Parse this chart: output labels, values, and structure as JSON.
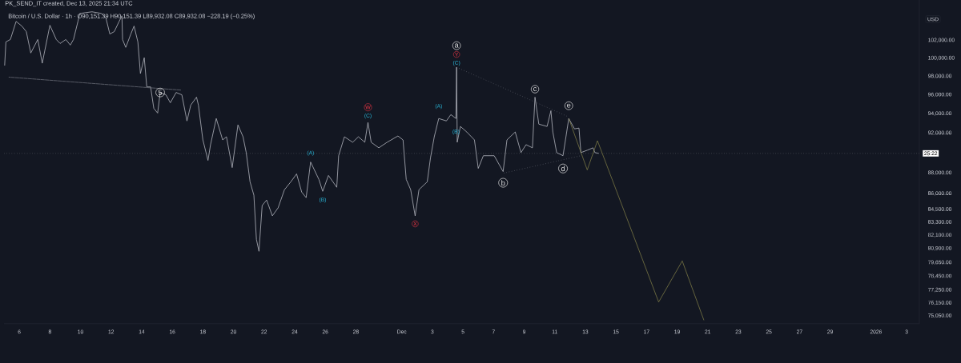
{
  "chart_data": {
    "type": "line",
    "title": "Bitcoin / U.S. Dollar · 1h · O90,151.39 H90,151.39 L89,932.08 C89,932.08 −228.19 (−0.25%)",
    "ylabel": "USD",
    "log": "y",
    "marker": "none",
    "xlim": [
      "2025-11-05T00:00",
      "2026-01-03T20:00"
    ],
    "ylim": [
      74400,
      106700
    ],
    "xticks": [
      {
        "value": "2025-11-06",
        "label": "6"
      },
      {
        "value": "2025-11-08",
        "label": "8"
      },
      {
        "value": "2025-11-10",
        "label": "10"
      },
      {
        "value": "2025-11-12",
        "label": "12"
      },
      {
        "value": "2025-11-14",
        "label": "14"
      },
      {
        "value": "2025-11-16",
        "label": "16"
      },
      {
        "value": "2025-11-18",
        "label": "18"
      },
      {
        "value": "2025-11-20",
        "label": "20"
      },
      {
        "value": "2025-11-22",
        "label": "22"
      },
      {
        "value": "2025-11-24",
        "label": "24"
      },
      {
        "value": "2025-11-26",
        "label": "26"
      },
      {
        "value": "2025-11-28",
        "label": "28"
      },
      {
        "value": "2025-12-01",
        "label": "Dec"
      },
      {
        "value": "2025-12-03",
        "label": "3"
      },
      {
        "value": "2025-12-05",
        "label": "5"
      },
      {
        "value": "2025-12-07",
        "label": "7"
      },
      {
        "value": "2025-12-09",
        "label": "9"
      },
      {
        "value": "2025-12-11",
        "label": "11"
      },
      {
        "value": "2025-12-13",
        "label": "13"
      },
      {
        "value": "2025-12-15",
        "label": "15"
      },
      {
        "value": "2025-12-17",
        "label": "17"
      },
      {
        "value": "2025-12-19",
        "label": "19"
      },
      {
        "value": "2025-12-21",
        "label": "21"
      },
      {
        "value": "2025-12-23",
        "label": "23"
      },
      {
        "value": "2025-12-25",
        "label": "25"
      },
      {
        "value": "2025-12-27",
        "label": "27"
      },
      {
        "value": "2025-12-29",
        "label": "29"
      },
      {
        "value": "2026-01-01",
        "label": "2026"
      },
      {
        "value": "2026-01-03",
        "label": "3"
      }
    ],
    "yticks": [
      {
        "value": 75050,
        "label": "75,050.00"
      },
      {
        "value": 76150,
        "label": "76,150.00"
      },
      {
        "value": 77250,
        "label": "77,250.00"
      },
      {
        "value": 78450,
        "label": "78,450.00"
      },
      {
        "value": 79650,
        "label": "79,650.00"
      },
      {
        "value": 80900,
        "label": "80,900.00"
      },
      {
        "value": 82100,
        "label": "82,100.00"
      },
      {
        "value": 83300,
        "label": "83,300.00"
      },
      {
        "value": 84500,
        "label": "84,500.00"
      },
      {
        "value": 86000,
        "label": "86,000.00"
      },
      {
        "value": 88000,
        "label": "88,000.00"
      },
      {
        "value": 90000,
        "label": null
      },
      {
        "value": 92000,
        "label": "92,000.00"
      },
      {
        "value": 94000,
        "label": "94,000.00"
      },
      {
        "value": 96000,
        "label": "96,000.00"
      },
      {
        "value": 98000,
        "label": "98,000.00"
      },
      {
        "value": 100000,
        "label": "100,000.00"
      },
      {
        "value": 102000,
        "label": "102,000.00"
      }
    ],
    "series": [
      {
        "color": "#b2b5be",
        "line_style": "solid",
        "x": [
          "2025-11-05T01:00",
          "2025-11-05T03:00",
          "2025-11-05T10:00",
          "2025-11-05T19:00",
          "2025-11-06T04:00",
          "2025-11-06T11:00",
          "2025-11-06T18:00",
          "2025-11-07T05:00",
          "2025-11-07T12:00",
          "2025-11-08T00:00",
          "2025-11-08T10:00",
          "2025-11-08T16:00",
          "2025-11-09T01:00",
          "2025-11-09T08:00",
          "2025-11-09T13:00",
          "2025-11-09T20:00",
          "2025-11-09T23:00",
          "2025-11-10T18:00",
          "2025-11-11T09:00",
          "2025-11-11T16:00",
          "2025-11-11T22:00",
          "2025-11-12T05:00",
          "2025-11-12T12:00",
          "2025-11-12T17:00",
          "2025-11-12T18:00",
          "2025-11-12T23:00",
          "2025-11-13T07:00",
          "2025-11-13T12:00",
          "2025-11-13T18:00",
          "2025-11-13T22:00",
          "2025-11-14T04:00",
          "2025-11-14T08:00",
          "2025-11-14T14:00",
          "2025-11-14T19:00",
          "2025-11-15T01:00",
          "2025-11-15T05:00",
          "2025-11-15T14:00",
          "2025-11-15T21:00",
          "2025-11-16T06:00",
          "2025-11-16T15:00",
          "2025-11-16T23:00",
          "2025-11-17T05:00",
          "2025-11-17T14:00",
          "2025-11-17T17:00",
          "2025-11-18T00:00",
          "2025-11-18T08:00",
          "2025-11-18T12:00",
          "2025-11-18T21:00",
          "2025-11-19T07:00",
          "2025-11-19T13:00",
          "2025-11-19T22:00",
          "2025-11-20T07:00",
          "2025-11-20T15:00",
          "2025-11-20T20:00",
          "2025-11-21T02:00",
          "2025-11-21T08:00",
          "2025-11-21T12:00",
          "2025-11-21T16:00",
          "2025-11-21T21:00",
          "2025-11-22T04:00",
          "2025-11-22T13:00",
          "2025-11-22T22:00",
          "2025-11-23T08:00",
          "2025-11-23T18:00",
          "2025-11-24T03:00",
          "2025-11-24T11:00",
          "2025-11-24T18:00",
          "2025-11-25T01:00",
          "2025-11-25T14:00",
          "2025-11-25T20:00",
          "2025-11-26T05:00",
          "2025-11-26T18:00",
          "2025-11-26T21:00",
          "2025-11-27T06:00",
          "2025-11-27T19:00",
          "2025-11-28T04:00",
          "2025-11-28T14:00",
          "2025-11-28T19:00",
          "2025-11-29T00:00",
          "2025-11-29T12:00",
          "2025-11-30T01:00",
          "2025-11-30T18:00",
          "2025-12-01T02:00",
          "2025-12-01T07:00",
          "2025-12-01T14:00",
          "2025-12-01T21:00",
          "2025-12-02T03:00",
          "2025-12-02T16:00",
          "2025-12-02T21:00",
          "2025-12-03T03:00",
          "2025-12-03T10:00",
          "2025-12-03T22:00",
          "2025-12-04T05:00",
          "2025-12-04T13:00",
          "2025-12-04T14:00",
          "2025-12-04T15:00",
          "2025-12-04T20:00",
          "2025-12-05T06:00",
          "2025-12-05T18:00",
          "2025-12-06T00:00",
          "2025-12-06T08:00",
          "2025-12-07T01:00",
          "2025-12-07T15:00",
          "2025-12-07T21:00",
          "2025-12-08T10:00",
          "2025-12-08T19:00",
          "2025-12-09T03:00",
          "2025-12-09T13:00",
          "2025-12-09T17:00",
          "2025-12-09T23:00",
          "2025-12-10T12:00",
          "2025-12-10T18:00",
          "2025-12-10T21:00",
          "2025-12-11T03:00",
          "2025-12-11T13:00",
          "2025-12-11T22:00",
          "2025-12-12T07:00",
          "2025-12-12T14:00",
          "2025-12-12T17:00",
          "2025-12-13T03:00",
          "2025-12-13T12:00",
          "2025-12-13T15:00",
          "2025-12-13T21:00"
        ],
        "values": [
          99170,
          101820,
          102090,
          104170,
          103630,
          102990,
          100570,
          102090,
          99430,
          103720,
          102090,
          101640,
          102090,
          101460,
          102090,
          104170,
          105100,
          105290,
          105100,
          104540,
          102720,
          102990,
          104080,
          104820,
          102090,
          101200,
          102720,
          103630,
          101820,
          98300,
          100040,
          96840,
          96840,
          94560,
          94060,
          96240,
          95990,
          95150,
          96240,
          95990,
          93240,
          94900,
          95740,
          94900,
          91290,
          89230,
          90810,
          93490,
          91290,
          91610,
          88520,
          92830,
          91610,
          90010,
          87130,
          85840,
          81710,
          80640,
          84860,
          85380,
          83890,
          84640,
          86370,
          87130,
          87900,
          86140,
          85610,
          89070,
          87360,
          86210,
          87750,
          86600,
          89700,
          91610,
          91050,
          91610,
          91050,
          93080,
          91050,
          90490,
          91050,
          91690,
          91290,
          87360,
          86370,
          83890,
          86370,
          87130,
          89460,
          91610,
          93490,
          93240,
          93900,
          93490,
          98990,
          91050,
          92670,
          92100,
          91290,
          88440,
          89700,
          89700,
          88130,
          91290,
          92100,
          90010,
          90810,
          90490,
          95740,
          92910,
          92670,
          94310,
          92100,
          90010,
          89700,
          93490,
          92420,
          92500,
          90010,
          90250,
          90490,
          90010,
          89932.08
        ]
      },
      {
        "color": "#787b86",
        "line_style": "dashed",
        "x": [
          "2025-11-05T08:00",
          "2025-11-16T13:00"
        ],
        "values": [
          97900,
          96500
        ]
      },
      {
        "color": "#787b86",
        "line_style": "dotted",
        "x": [
          "2025-12-04T14:00",
          "2025-12-11T22:00"
        ],
        "values": [
          98990,
          93650
        ]
      },
      {
        "color": "#787b86",
        "line_style": "dotted",
        "x": [
          "2025-12-07T16:00",
          "2025-12-12T17:00"
        ],
        "values": [
          87980,
          89700
        ]
      },
      {
        "color": "#8c8a4c",
        "line_style": "solid",
        "x": [
          "2025-12-11T22:00",
          "2025-12-13T03:00",
          "2025-12-13T19:00",
          "2025-12-17T19:00",
          "2025-12-19T08:00",
          "2025-12-20T18:00"
        ],
        "values": [
          93490,
          88290,
          91210,
          76220,
          79790,
          74690
        ]
      }
    ],
    "ref_lines": [
      {
        "axis": "y",
        "value": 89932.08,
        "color": "#9598a1",
        "line_style": "dotted"
      }
    ],
    "annotations": [
      "PK_SEND_IT created, Dec 13, 2025 21:34 UTC",
      "25:22",
      {
        "text": "5",
        "x": "2025-11-15T05:00",
        "y": 96240
      },
      {
        "text": "(A)",
        "x": "2025-11-25T01:00",
        "y": 89070
      },
      {
        "text": "(B)",
        "x": "2025-11-25T20:00",
        "y": 86210
      },
      {
        "text": "W",
        "x": "2025-11-28T19:00",
        "y": 93080
      },
      {
        "text": "(C)",
        "x": "2025-11-28T19:00",
        "y": 93080
      },
      {
        "text": "X",
        "x": "2025-12-01T21:00",
        "y": 83890
      },
      {
        "text": "(A)",
        "x": "2025-12-03T10:00",
        "y": 93490
      },
      {
        "text": "(B)",
        "x": "2025-12-04T13:00",
        "y": 93490
      },
      {
        "text": "a",
        "x": "2025-12-04T14:00",
        "y": 98990
      },
      {
        "text": "Y",
        "x": "2025-12-04T14:00",
        "y": 98990
      },
      {
        "text": "(C)",
        "x": "2025-12-04T14:00",
        "y": 98990
      },
      {
        "text": "b",
        "x": "2025-12-07T15:00",
        "y": 88130
      },
      {
        "text": "c",
        "x": "2025-12-09T17:00",
        "y": 95740
      },
      {
        "text": "d",
        "x": "2025-12-11T13:00",
        "y": 89700
      },
      {
        "text": "e",
        "x": "2025-12-11T22:00",
        "y": 93490
      }
    ]
  }
}
